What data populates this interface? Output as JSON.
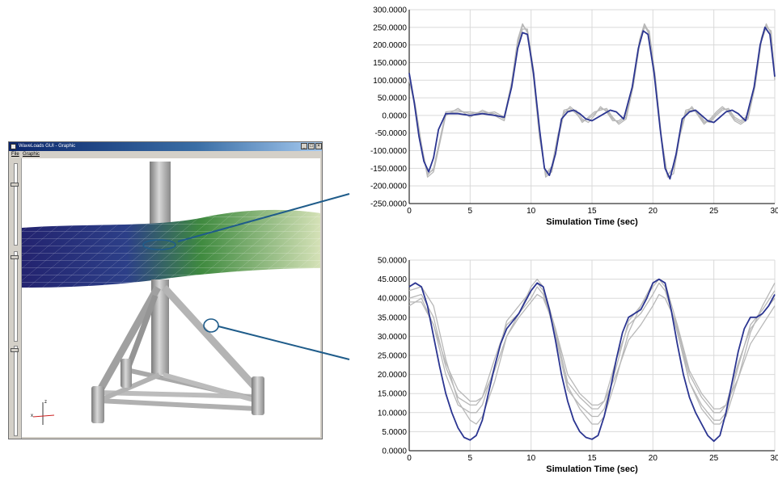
{
  "window": {
    "title": "WaveLoads GUI - Graphic",
    "menu": [
      "File",
      "Graphic"
    ],
    "buttons": [
      "_",
      "□",
      "×"
    ]
  },
  "axis_indicator": {
    "z_label": "z",
    "x_label": "x"
  },
  "colors": {
    "primary_series": "#2b3591",
    "secondary_series": "#b8b8b8",
    "callout_line": "#1f5c8a",
    "wave_dark": "#23236f",
    "wave_mid": "#3f8a3f",
    "wave_light": "#d6e2b8"
  },
  "chart_data": [
    {
      "type": "line",
      "xlabel": "Simulation Time (sec)",
      "ylabel": "",
      "xlim": [
        0,
        30
      ],
      "ylim": [
        -250,
        300
      ],
      "x_ticks": [
        "0",
        "5",
        "10",
        "15",
        "20",
        "25",
        "30"
      ],
      "y_ticks": [
        "300.0000",
        "250.0000",
        "200.0000",
        "150.0000",
        "100.0000",
        "50.0000",
        "0.0000",
        "-50.0000",
        "-100.0000",
        "-150.0000",
        "-200.0000",
        "-250.0000"
      ],
      "y_tick_values": [
        300,
        250,
        200,
        150,
        100,
        50,
        0,
        -50,
        -100,
        -150,
        -200,
        -250
      ],
      "grid": true,
      "series": [
        {
          "role": "primary",
          "x": [
            0,
            0.4,
            0.8,
            1.2,
            1.6,
            2.0,
            2.4,
            3,
            4,
            5,
            6,
            7,
            7.8,
            8.4,
            8.9,
            9.3,
            9.7,
            10.2,
            10.7,
            11.1,
            11.5,
            12,
            12.5,
            13,
            13.5,
            14,
            14.5,
            15,
            15.5,
            16,
            16.5,
            17,
            17.6,
            18.3,
            18.8,
            19.2,
            19.6,
            20.1,
            20.6,
            21.0,
            21.4,
            21.9,
            22.4,
            23,
            23.5,
            24,
            24.5,
            25,
            25.5,
            26,
            26.5,
            27,
            27.6,
            28.3,
            28.8,
            29.2,
            29.6,
            30
          ],
          "y": [
            120,
            40,
            -60,
            -130,
            -160,
            -120,
            -40,
            5,
            5,
            0,
            5,
            0,
            -5,
            80,
            190,
            235,
            230,
            120,
            -40,
            -150,
            -170,
            -110,
            -10,
            10,
            15,
            5,
            -10,
            -15,
            -5,
            5,
            15,
            10,
            -10,
            80,
            190,
            240,
            230,
            120,
            -40,
            -150,
            -180,
            -110,
            -10,
            10,
            15,
            0,
            -15,
            -20,
            -5,
            10,
            15,
            5,
            -15,
            80,
            200,
            250,
            230,
            110
          ]
        },
        {
          "role": "secondary",
          "x": [
            0,
            0.5,
            1,
            1.5,
            2,
            2.5,
            3,
            4,
            5,
            6,
            7,
            7.8,
            8.4,
            8.9,
            9.3,
            9.7,
            10.2,
            10.7,
            11.2,
            11.7,
            12.2,
            12.7,
            13.2,
            13.7,
            14.2,
            14.7,
            15.2,
            15.7,
            16.2,
            16.7,
            17.2,
            17.8,
            18.4,
            18.9,
            19.3,
            19.7,
            20.2,
            20.7,
            21.2,
            21.7,
            22.2,
            22.7,
            23.2,
            23.7,
            24.2,
            24.7,
            25.2,
            25.7,
            26.2,
            26.7,
            27.2,
            27.8,
            28.4,
            28.9,
            29.3,
            29.7,
            30
          ],
          "y": [
            100,
            20,
            -90,
            -170,
            -150,
            -70,
            10,
            15,
            5,
            10,
            5,
            -10,
            90,
            210,
            255,
            240,
            110,
            -60,
            -170,
            -150,
            -60,
            15,
            20,
            5,
            -15,
            -10,
            5,
            20,
            15,
            -10,
            -20,
            -5,
            90,
            210,
            255,
            230,
            100,
            -70,
            -170,
            -150,
            -50,
            15,
            20,
            5,
            -20,
            -15,
            5,
            20,
            15,
            -10,
            -20,
            -5,
            90,
            220,
            260,
            230,
            100
          ]
        },
        {
          "role": "secondary",
          "x": [
            0,
            0.5,
            1,
            1.5,
            2,
            2.5,
            3,
            4,
            5,
            6,
            7,
            7.8,
            8.4,
            8.9,
            9.3,
            9.7,
            10.2,
            10.7,
            11.2,
            11.7,
            12.2,
            12.7,
            13.2,
            13.7,
            14.2,
            14.7,
            15.2,
            15.7,
            16.2,
            16.7,
            17.2,
            17.8,
            18.4,
            18.9,
            19.3,
            19.7,
            20.2,
            20.7,
            21.2,
            21.7,
            22.2,
            22.7,
            23.2,
            23.7,
            24.2,
            24.7,
            25.2,
            25.7,
            26.2,
            26.7,
            27.2,
            27.8,
            28.4,
            28.9,
            29.3,
            29.7,
            30
          ],
          "y": [
            110,
            30,
            -80,
            -175,
            -160,
            -80,
            0,
            20,
            -5,
            15,
            0,
            -15,
            85,
            200,
            245,
            245,
            130,
            -50,
            -175,
            -160,
            -70,
            5,
            25,
            10,
            -20,
            -5,
            10,
            15,
            20,
            -5,
            -25,
            -10,
            85,
            200,
            250,
            240,
            110,
            -60,
            -175,
            -165,
            -60,
            5,
            25,
            0,
            -25,
            -10,
            10,
            25,
            10,
            -15,
            -25,
            -10,
            85,
            210,
            250,
            240,
            110
          ]
        },
        {
          "role": "secondary",
          "x": [
            0,
            0.5,
            1,
            1.5,
            2,
            2.5,
            3,
            4,
            5,
            6,
            7,
            7.8,
            8.4,
            8.9,
            9.3,
            9.7,
            10.2,
            10.7,
            11.2,
            11.7,
            12.2,
            12.7,
            13.2,
            13.7,
            14.2,
            14.7,
            15.2,
            15.7,
            16.2,
            16.7,
            17.2,
            17.8,
            18.4,
            18.9,
            19.3,
            19.7,
            20.2,
            20.7,
            21.2,
            21.7,
            22.2,
            22.7,
            23.2,
            23.7,
            24.2,
            24.7,
            25.2,
            25.7,
            26.2,
            26.7,
            27.2,
            27.8,
            28.4,
            28.9,
            29.3,
            29.7,
            30
          ],
          "y": [
            105,
            25,
            -85,
            -165,
            -155,
            -75,
            5,
            10,
            10,
            5,
            10,
            -5,
            95,
            215,
            260,
            235,
            105,
            -65,
            -165,
            -145,
            -55,
            10,
            15,
            15,
            -10,
            -20,
            0,
            25,
            10,
            -15,
            -15,
            0,
            95,
            215,
            260,
            235,
            105,
            -65,
            -170,
            -145,
            -55,
            10,
            15,
            10,
            -15,
            -20,
            0,
            15,
            20,
            -5,
            -15,
            0,
            95,
            215,
            255,
            235,
            105
          ]
        }
      ]
    },
    {
      "type": "line",
      "xlabel": "Simulation Time (sec)",
      "ylabel": "",
      "xlim": [
        0,
        30
      ],
      "ylim": [
        0,
        50
      ],
      "x_ticks": [
        "0",
        "5",
        "10",
        "15",
        "20",
        "25",
        "30"
      ],
      "y_ticks": [
        "50.0000",
        "45.0000",
        "40.0000",
        "35.0000",
        "30.0000",
        "25.0000",
        "20.0000",
        "15.0000",
        "10.0000",
        "5.0000",
        "0.0000"
      ],
      "y_tick_values": [
        50,
        45,
        40,
        35,
        30,
        25,
        20,
        15,
        10,
        5,
        0
      ],
      "grid": true,
      "series": [
        {
          "role": "primary",
          "x": [
            0,
            0.5,
            1,
            1.5,
            2,
            2.5,
            3,
            3.5,
            4,
            4.5,
            5,
            5.5,
            6,
            6.5,
            7,
            7.5,
            8,
            8.5,
            9,
            9.5,
            10,
            10.5,
            11,
            11.5,
            12,
            12.5,
            13,
            13.5,
            14,
            14.5,
            15,
            15.5,
            16,
            16.5,
            17,
            17.5,
            18,
            18.5,
            19,
            19.5,
            20,
            20.5,
            21,
            21.5,
            22,
            22.5,
            23,
            23.5,
            24,
            24.5,
            25,
            25.5,
            26,
            26.5,
            27,
            27.5,
            28,
            28.5,
            29,
            29.5,
            30
          ],
          "y": [
            43,
            44,
            43,
            38,
            30,
            22,
            15,
            10,
            6,
            3.5,
            2.8,
            4,
            8,
            15,
            22,
            28,
            32,
            34,
            36,
            39,
            42,
            44,
            43,
            37,
            29,
            20,
            13,
            8,
            5,
            3.5,
            3,
            4,
            9,
            16,
            24,
            31,
            35,
            36,
            37,
            40,
            44,
            45,
            44,
            37,
            28,
            20,
            14,
            10,
            7,
            4,
            2.5,
            4,
            10,
            18,
            26,
            32,
            35,
            35,
            36,
            38,
            41
          ]
        },
        {
          "role": "secondary",
          "x": [
            0,
            1,
            2,
            3,
            4,
            5,
            5.5,
            6,
            7,
            8,
            9,
            10,
            10.5,
            11,
            12,
            13,
            14,
            15,
            15.5,
            16,
            17,
            18,
            19,
            20,
            20.5,
            21,
            22,
            23,
            24,
            25,
            25.5,
            26,
            27,
            28,
            29,
            30
          ],
          "y": [
            38,
            40,
            33,
            20,
            12,
            10,
            10,
            12,
            22,
            34,
            38,
            42,
            44,
            42,
            30,
            16,
            12,
            9,
            9,
            11,
            22,
            34,
            38,
            43,
            45,
            43,
            31,
            18,
            12,
            8,
            8,
            10,
            22,
            33,
            37,
            42
          ]
        },
        {
          "role": "secondary",
          "x": [
            0,
            1,
            2,
            3,
            4,
            5,
            5.5,
            6,
            7,
            8,
            9,
            10,
            10.5,
            11,
            12,
            13,
            14,
            15,
            15.5,
            16,
            17,
            18,
            19,
            20,
            20.5,
            21,
            22,
            23,
            24,
            25,
            25.5,
            26,
            27,
            28,
            29,
            30
          ],
          "y": [
            40,
            41,
            35,
            22,
            14,
            12,
            12,
            14,
            24,
            33,
            36,
            40,
            43,
            41,
            31,
            18,
            14,
            11,
            11,
            13,
            24,
            33,
            36,
            41,
            44,
            42,
            32,
            20,
            14,
            10,
            10,
            12,
            23,
            32,
            36,
            40
          ]
        },
        {
          "role": "secondary",
          "x": [
            0,
            1,
            2,
            3,
            4,
            5,
            5.5,
            6,
            7,
            8,
            9,
            10,
            10.5,
            11,
            12,
            13,
            14,
            15,
            15.5,
            16,
            17,
            18,
            19,
            20,
            20.5,
            21,
            22,
            23,
            24,
            25,
            25.5,
            26,
            27,
            28,
            29,
            30
          ],
          "y": [
            42,
            43,
            38,
            24,
            13,
            8,
            7,
            9,
            18,
            30,
            36,
            43,
            45,
            43,
            32,
            17,
            11,
            7,
            7,
            9,
            19,
            31,
            38,
            44,
            45,
            44,
            33,
            18,
            11,
            7,
            7,
            9,
            19,
            31,
            38,
            44
          ]
        },
        {
          "role": "secondary",
          "x": [
            0,
            1,
            2,
            3,
            4,
            5,
            5.5,
            6,
            7,
            8,
            9,
            10,
            10.5,
            11,
            12,
            13,
            14,
            15,
            15.5,
            16,
            17,
            18,
            19,
            20,
            20.5,
            21,
            22,
            23,
            24,
            25,
            25.5,
            26,
            27,
            28,
            29,
            30
          ],
          "y": [
            39,
            39,
            33,
            23,
            16,
            13,
            13,
            14,
            21,
            30,
            35,
            39,
            41,
            40,
            32,
            20,
            15,
            12,
            12,
            13,
            20,
            29,
            33,
            38,
            41,
            40,
            33,
            21,
            15,
            11,
            11,
            12,
            19,
            28,
            33,
            38
          ]
        }
      ]
    }
  ]
}
